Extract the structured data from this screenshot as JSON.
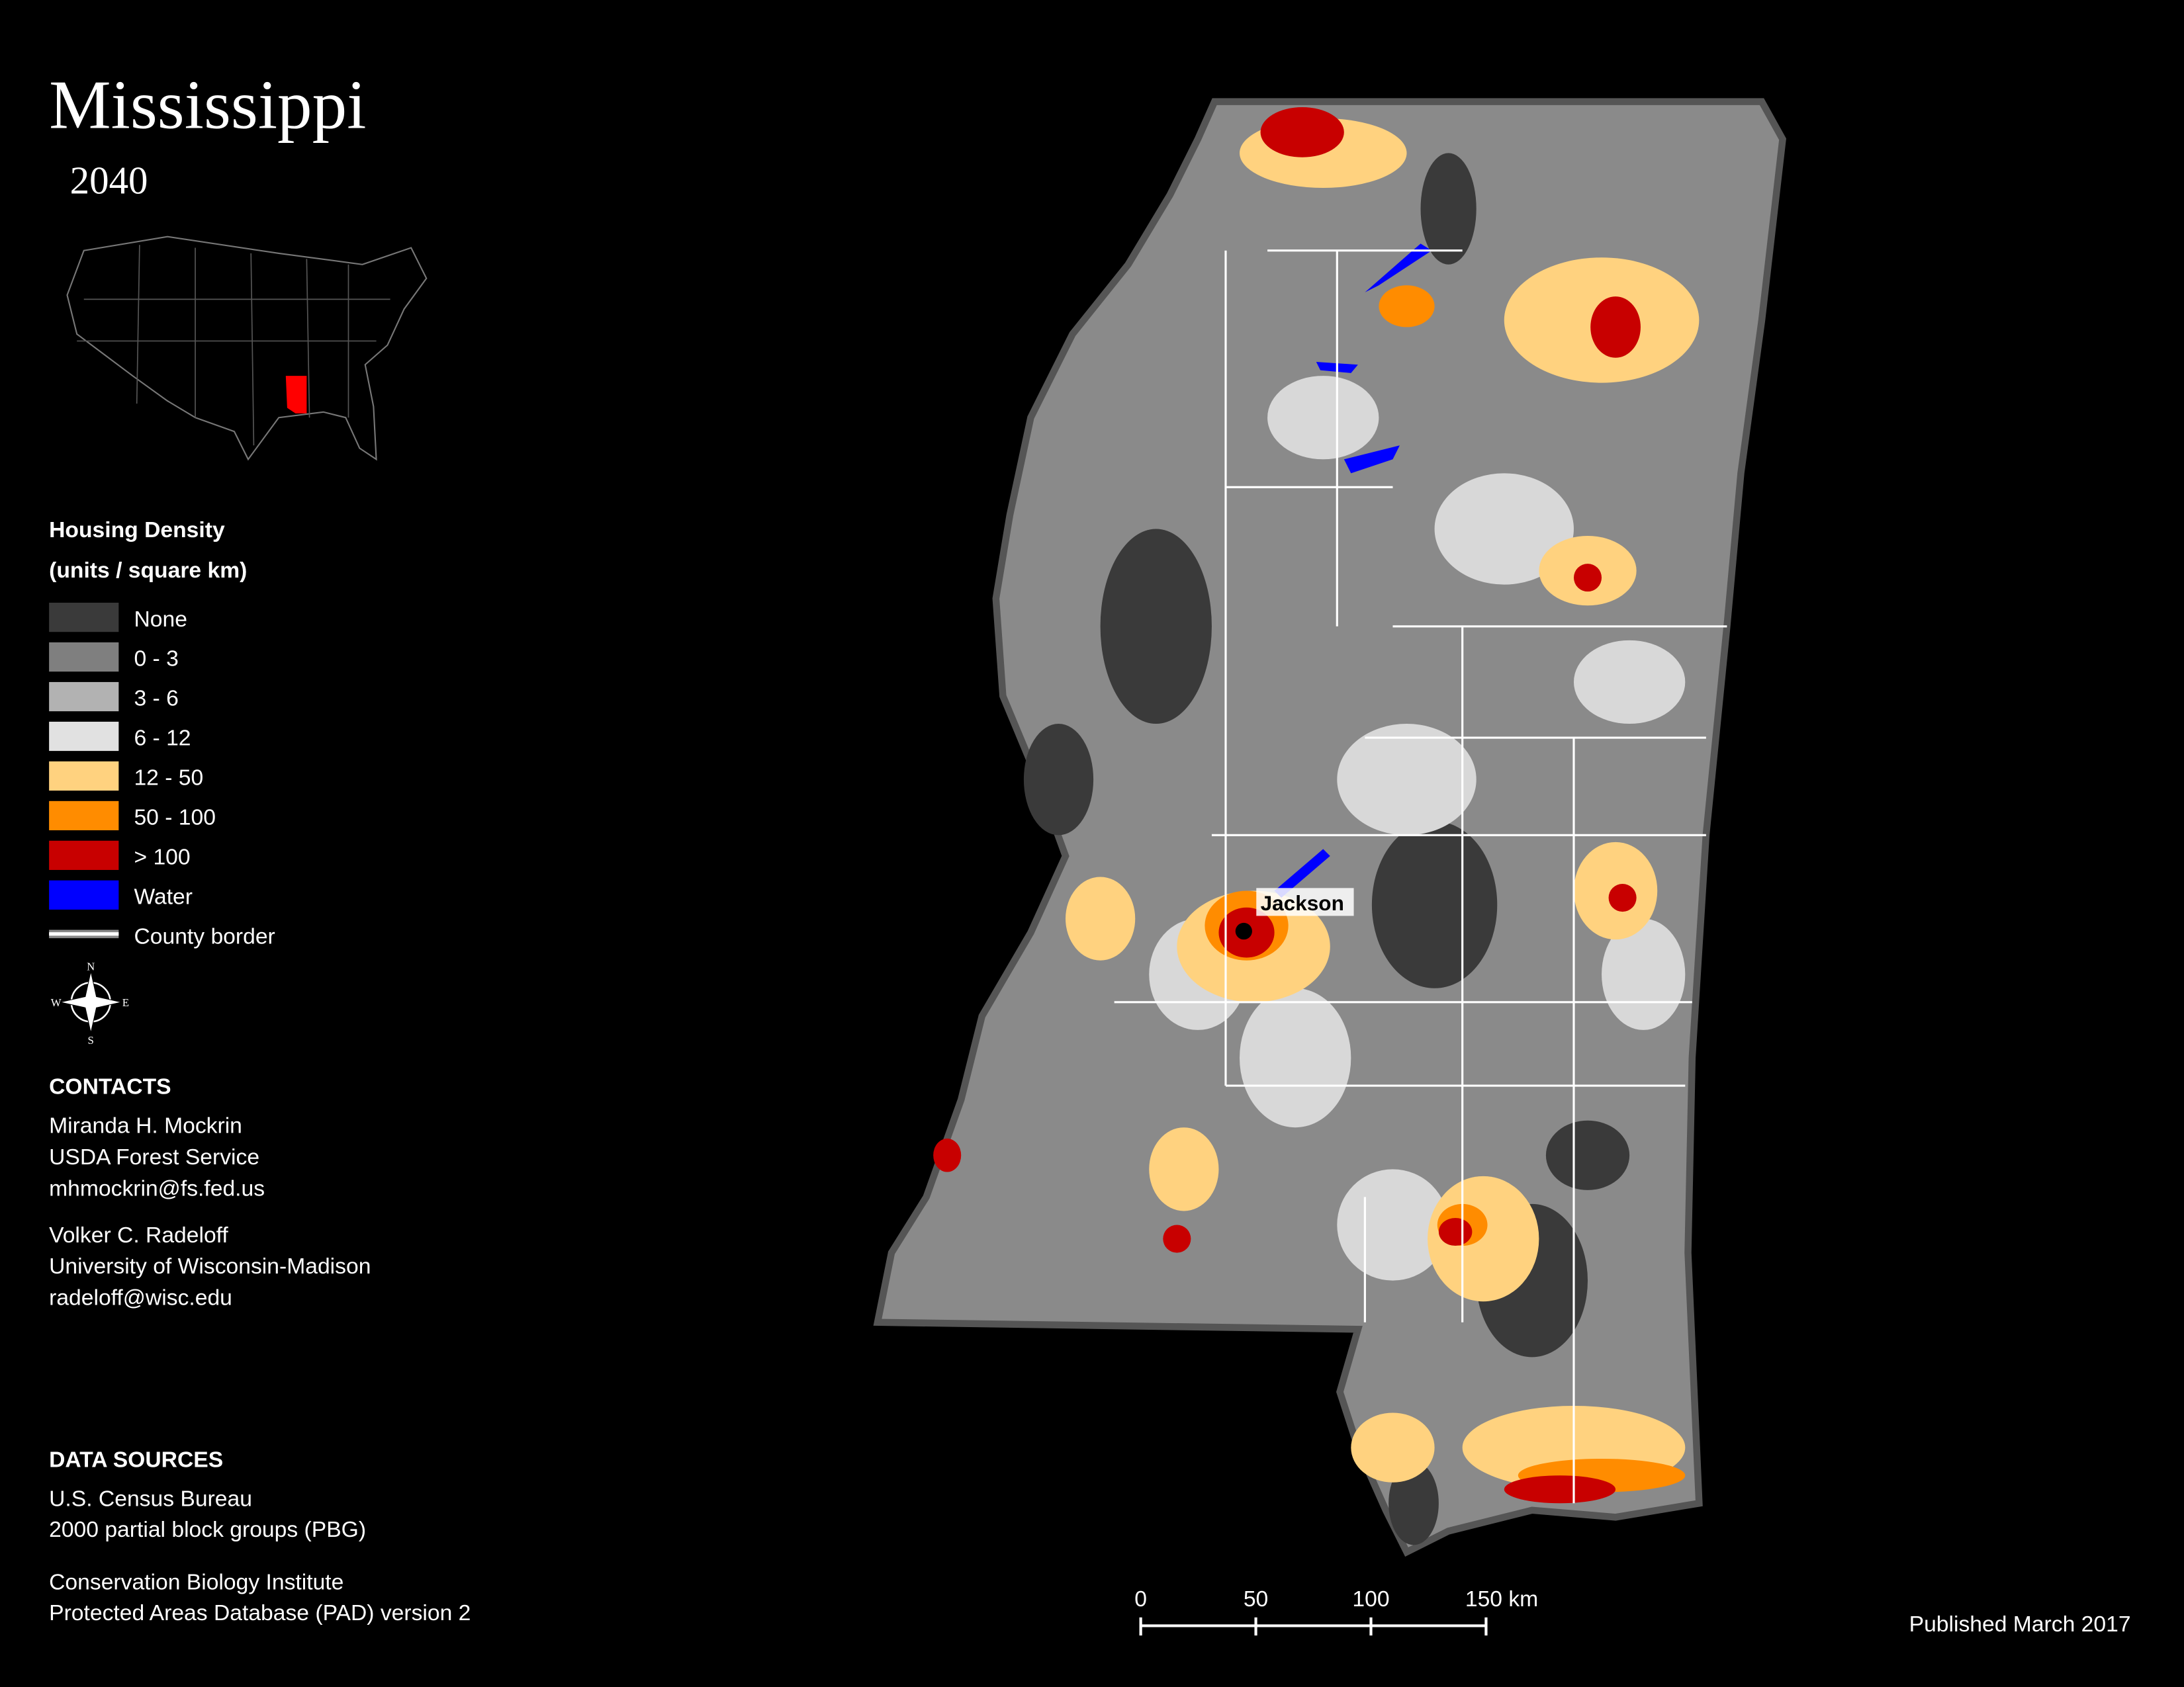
{
  "header": {
    "title": "Mississippi",
    "subtitle": "2040"
  },
  "legend": {
    "title": "Housing Density",
    "subtitle": "(units / square km)",
    "items": [
      {
        "label": "None",
        "color": "#3a3a3a"
      },
      {
        "label": "0 - 3",
        "color": "#7f7f7f"
      },
      {
        "label": "3 - 6",
        "color": "#b2b2b2"
      },
      {
        "label": "6 - 12",
        "color": "#e1e1e1"
      },
      {
        "label": "12 - 50",
        "color": "#ffd27f"
      },
      {
        "label": "50 - 100",
        "color": "#ff8c00"
      },
      {
        "label": "> 100",
        "color": "#c80000"
      },
      {
        "label": "Water",
        "color": "#0000ff"
      },
      {
        "label": "County border",
        "color": "#ffffff"
      }
    ]
  },
  "compass": {
    "north": "N",
    "south": "S",
    "east": "E",
    "west": "W"
  },
  "contacts": {
    "title": "CONTACTS",
    "people": [
      [
        "Miranda H. Mockrin",
        "USDA Forest Service",
        "mhmockrin@fs.fed.us"
      ],
      [
        "Volker C. Radeloff",
        "University of Wisconsin-Madison",
        "radeloff@wisc.edu"
      ]
    ]
  },
  "data_sources": {
    "title": "DATA SOURCES",
    "sources": [
      [
        "U.S. Census Bureau",
        "2000 partial block groups (PBG)"
      ],
      [
        "Conservation Biology Institute",
        "Protected Areas Database (PAD) version 2"
      ]
    ]
  },
  "map": {
    "city": "Jackson"
  },
  "scale_bar": {
    "ticks": [
      0,
      50,
      100,
      {
        "value": 150,
        "label": "150 km"
      }
    ]
  },
  "footer": {
    "published": "Published March 2017"
  }
}
